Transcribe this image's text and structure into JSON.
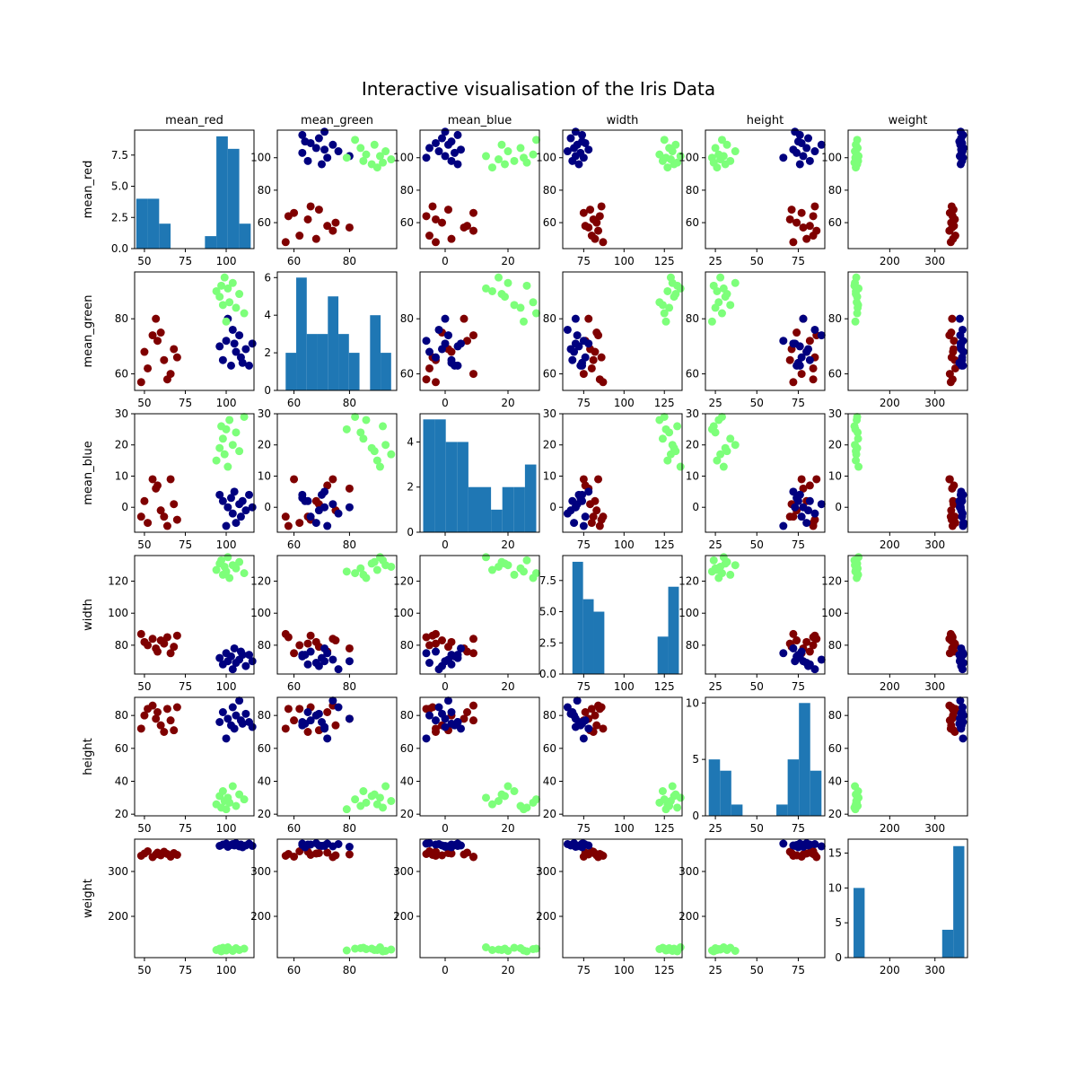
{
  "figure": {
    "title": "Interactive visualisation of the Iris Data"
  },
  "variables": [
    "mean_red",
    "mean_green",
    "mean_blue",
    "width",
    "height",
    "weight"
  ],
  "colors": {
    "class_0": "#7f0000",
    "class_1": "#00007f",
    "class_2": "#7dff7a",
    "histogram": "#1f77b4",
    "axes": "#000000"
  },
  "chart_data": {
    "type": "scatter",
    "layout": "scatter-matrix",
    "variables": [
      "mean_red",
      "mean_green",
      "mean_blue",
      "width",
      "height",
      "weight"
    ],
    "axis_limits": {
      "mean_red": [
        44,
        117
      ],
      "mean_green": [
        54,
        97
      ],
      "mean_blue": [
        -8,
        30
      ],
      "width": [
        62,
        136
      ],
      "height": [
        19,
        91
      ],
      "weight": [
        108,
        372
      ]
    },
    "ticks": {
      "mean_red": [
        50,
        75,
        100
      ],
      "mean_green": [
        60,
        80
      ],
      "mean_blue": [
        0,
        20
      ],
      "width": [
        75,
        100,
        125
      ],
      "height": [
        25,
        50,
        75
      ],
      "weight": [
        200,
        300
      ]
    },
    "tick_labels_y": {
      "mean_red": [
        "60",
        "80",
        "100"
      ],
      "mean_green": [
        "60",
        "80"
      ],
      "mean_blue": [
        "0",
        "10",
        "20",
        "30"
      ],
      "width": [
        "80",
        "100",
        "120"
      ],
      "height": [
        "20",
        "40",
        "60",
        "80"
      ],
      "weight": [
        "200",
        "300"
      ]
    },
    "classes": [
      {
        "color": "#7f0000",
        "points": [
          {
            "mean_red": 48,
            "mean_green": 57,
            "mean_blue": -3,
            "width": 87,
            "height": 72,
            "weight": 335
          },
          {
            "mean_red": 50,
            "mean_green": 68,
            "mean_blue": 2,
            "width": 82,
            "height": 80,
            "weight": 340
          },
          {
            "mean_red": 52,
            "mean_green": 62,
            "mean_blue": -5,
            "width": 80,
            "height": 84,
            "weight": 345
          },
          {
            "mean_red": 55,
            "mean_green": 74,
            "mean_blue": 9,
            "width": 84,
            "height": 86,
            "weight": 332
          },
          {
            "mean_red": 57,
            "mean_green": 80,
            "mean_blue": 6,
            "width": 78,
            "height": 78,
            "weight": 338
          },
          {
            "mean_red": 58,
            "mean_green": 72,
            "mean_blue": 7,
            "width": 76,
            "height": 82,
            "weight": 342
          },
          {
            "mean_red": 60,
            "mean_green": 75,
            "mean_blue": -1,
            "width": 83,
            "height": 74,
            "weight": 336
          },
          {
            "mean_red": 62,
            "mean_green": 65,
            "mean_blue": -3,
            "width": 81,
            "height": 70,
            "weight": 344
          },
          {
            "mean_red": 64,
            "mean_green": 58,
            "mean_blue": -6,
            "width": 85,
            "height": 84,
            "weight": 339
          },
          {
            "mean_red": 66,
            "mean_green": 60,
            "mean_blue": 9,
            "width": 75,
            "height": 77,
            "weight": 333
          },
          {
            "mean_red": 68,
            "mean_green": 69,
            "mean_blue": 1,
            "width": 79,
            "height": 71,
            "weight": 341
          },
          {
            "mean_red": 70,
            "mean_green": 66,
            "mean_blue": -4,
            "width": 86,
            "height": 85,
            "weight": 337
          }
        ]
      },
      {
        "color": "#00007f",
        "points": [
          {
            "mean_red": 96,
            "mean_green": 70,
            "mean_blue": 4,
            "width": 72,
            "height": 76,
            "weight": 357
          },
          {
            "mean_red": 98,
            "mean_green": 65,
            "mean_blue": 2,
            "width": 68,
            "height": 82,
            "weight": 360
          },
          {
            "mean_red": 100,
            "mean_green": 72,
            "mean_blue": -6,
            "width": 75,
            "height": 66,
            "weight": 362
          },
          {
            "mean_red": 101,
            "mean_green": 80,
            "mean_blue": 0,
            "width": 70,
            "height": 78,
            "weight": 355
          },
          {
            "mean_red": 103,
            "mean_green": 63,
            "mean_blue": 3,
            "width": 73,
            "height": 74,
            "weight": 359
          },
          {
            "mean_red": 104,
            "mean_green": 76,
            "mean_blue": -2,
            "width": 65,
            "height": 85,
            "weight": 361
          },
          {
            "mean_red": 105,
            "mean_green": 71,
            "mean_blue": 5,
            "width": 78,
            "height": 72,
            "weight": 358
          },
          {
            "mean_red": 106,
            "mean_green": 68,
            "mean_blue": -5,
            "width": 69,
            "height": 80,
            "weight": 363
          },
          {
            "mean_red": 108,
            "mean_green": 74,
            "mean_blue": 1,
            "width": 71,
            "height": 89,
            "weight": 356
          },
          {
            "mean_red": 109,
            "mean_green": 66,
            "mean_blue": -3,
            "width": 76,
            "height": 77,
            "weight": 360
          },
          {
            "mean_red": 110,
            "mean_green": 64,
            "mean_blue": 2,
            "width": 74,
            "height": 75,
            "weight": 354
          },
          {
            "mean_red": 112,
            "mean_green": 69,
            "mean_blue": -1,
            "width": 67,
            "height": 81,
            "weight": 358
          },
          {
            "mean_red": 114,
            "mean_green": 63,
            "mean_blue": 4,
            "width": 74,
            "height": 76,
            "weight": 362
          },
          {
            "mean_red": 116,
            "mean_green": 71,
            "mean_blue": 0,
            "width": 70,
            "height": 73,
            "weight": 357
          }
        ]
      },
      {
        "color": "#7dff7a",
        "points": [
          {
            "mean_red": 94,
            "mean_green": 90,
            "mean_blue": 15,
            "width": 127,
            "height": 26,
            "weight": 125
          },
          {
            "mean_red": 96,
            "mean_green": 88,
            "mean_blue": 19,
            "width": 131,
            "height": 31,
            "weight": 128
          },
          {
            "mean_red": 97,
            "mean_green": 92,
            "mean_blue": 26,
            "width": 133,
            "height": 24,
            "weight": 122
          },
          {
            "mean_red": 98,
            "mean_green": 85,
            "mean_blue": 22,
            "width": 124,
            "height": 34,
            "weight": 130
          },
          {
            "mean_red": 99,
            "mean_green": 95,
            "mean_blue": 17,
            "width": 129,
            "height": 28,
            "weight": 126
          },
          {
            "mean_red": 100,
            "mean_green": 79,
            "mean_blue": 25,
            "width": 126,
            "height": 23,
            "weight": 124
          },
          {
            "mean_red": 101,
            "mean_green": 91,
            "mean_blue": 13,
            "width": 135,
            "height": 30,
            "weight": 131
          },
          {
            "mean_red": 102,
            "mean_green": 86,
            "mean_blue": 28,
            "width": 122,
            "height": 27,
            "weight": 127
          },
          {
            "mean_red": 104,
            "mean_green": 93,
            "mean_blue": 20,
            "width": 130,
            "height": 37,
            "weight": 123
          },
          {
            "mean_red": 106,
            "mean_green": 84,
            "mean_blue": 24,
            "width": 128,
            "height": 25,
            "weight": 129
          },
          {
            "mean_red": 108,
            "mean_green": 89,
            "mean_blue": 18,
            "width": 132,
            "height": 32,
            "weight": 125
          },
          {
            "mean_red": 111,
            "mean_green": 82,
            "mean_blue": 29,
            "width": 125,
            "height": 29,
            "weight": 128
          }
        ]
      }
    ],
    "histograms": {
      "mean_red": {
        "bins": [
          45,
          52,
          59,
          66,
          73,
          80,
          87,
          94,
          101,
          108,
          115
        ],
        "counts": [
          4,
          4,
          2,
          0,
          0,
          0,
          1,
          9,
          8,
          2
        ]
      },
      "mean_green": {
        "bins": [
          57,
          60.8,
          64.6,
          68.4,
          72.2,
          76,
          79.8,
          83.6,
          87.4,
          91.2,
          95
        ],
        "counts": [
          2,
          6,
          3,
          3,
          5,
          3,
          2,
          0,
          4,
          2
        ]
      },
      "mean_blue": {
        "bins": [
          -7,
          -3.4,
          0.2,
          3.8,
          7.4,
          11,
          14.6,
          18.2,
          21.8,
          25.4,
          29
        ],
        "counts": [
          5,
          5,
          4,
          4,
          2,
          2,
          1,
          2,
          2,
          3
        ]
      },
      "width": {
        "bins": [
          68,
          74.6,
          81.2,
          87.8,
          94.4,
          101,
          107.6,
          114.2,
          120.8,
          127.4,
          134
        ],
        "counts": [
          9,
          6,
          5,
          0,
          0,
          0,
          0,
          0,
          3,
          7
        ]
      },
      "height": {
        "bins": [
          21,
          27.8,
          34.6,
          41.4,
          48.2,
          55,
          61.8,
          68.6,
          75.4,
          82.2,
          89
        ],
        "counts": [
          5,
          4,
          1,
          0,
          0,
          0,
          1,
          5,
          10,
          4
        ]
      },
      "weight": {
        "bins": [
          120,
          144.5,
          169,
          193.5,
          218,
          242.5,
          267,
          291.5,
          316,
          340.5,
          365
        ],
        "counts": [
          10,
          0,
          0,
          0,
          0,
          0,
          0,
          0,
          4,
          16
        ]
      }
    },
    "histogram_ylim": {
      "mean_red": [
        0,
        9.5
      ],
      "mean_green": [
        0,
        6.3
      ],
      "mean_blue": [
        0,
        5.25
      ],
      "width": [
        0,
        9.5
      ],
      "height": [
        0,
        10.5
      ],
      "weight": [
        0,
        17
      ]
    },
    "histogram_yticks": {
      "mean_red": [
        "0.0",
        "2.5",
        "5.0",
        "7.5"
      ],
      "mean_green": [
        "0",
        "2",
        "4",
        "6"
      ],
      "mean_blue": [
        "0",
        "2",
        "4"
      ],
      "width": [
        "0.0",
        "2.5",
        "5.0",
        "7.5"
      ],
      "height": [
        "0",
        "5",
        "10"
      ],
      "weight": [
        "0",
        "5",
        "10",
        "15"
      ]
    }
  }
}
